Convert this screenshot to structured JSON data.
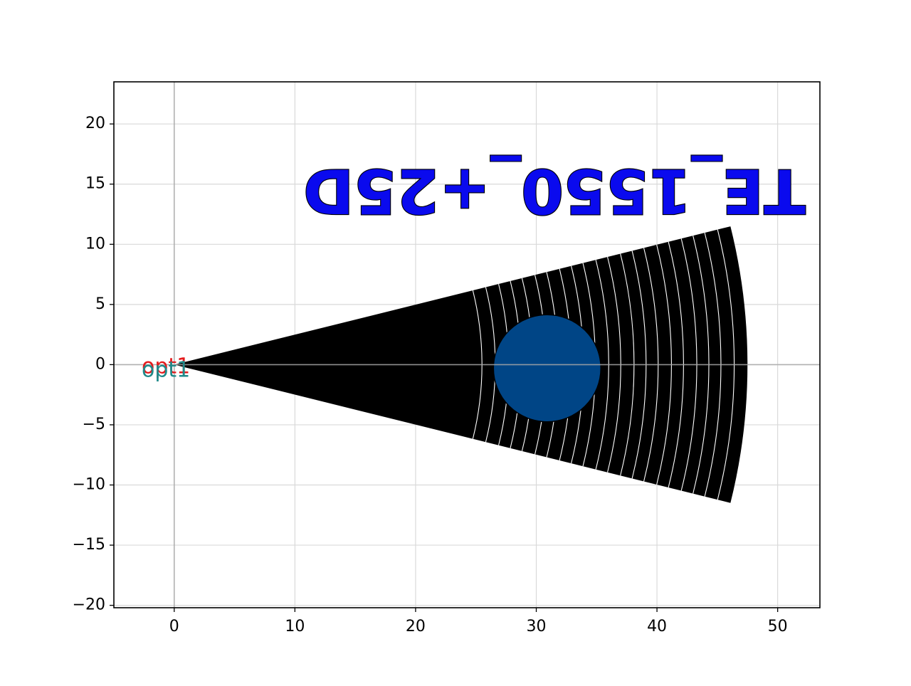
{
  "chart_data": {
    "type": "scatter",
    "title": "",
    "xlabel": "",
    "ylabel": "",
    "xlim": [
      -5,
      53.5
    ],
    "ylim": [
      -20.2,
      23.5
    ],
    "xticks": [
      0,
      10,
      20,
      30,
      40,
      50
    ],
    "yticks": [
      -20,
      -15,
      -10,
      -5,
      0,
      5,
      10,
      15,
      20
    ],
    "xtick_labels": [
      "0",
      "10",
      "20",
      "30",
      "40",
      "50"
    ],
    "ytick_labels": [
      "−20",
      "−15",
      "−10",
      "−5",
      "0",
      "5",
      "10",
      "15",
      "20"
    ],
    "grid": true,
    "origin_lines": true,
    "wedge": {
      "apex": [
        0,
        0
      ],
      "half_angle_deg": 14,
      "radius": 47.5,
      "color": "#000000"
    },
    "rings": {
      "radii": [
        25.5,
        26.6,
        27.7,
        28.7,
        29.7,
        30.8,
        31.8,
        32.9,
        33.9,
        34.9,
        36.0,
        37.0,
        38.1,
        39.1,
        40.1,
        41.2,
        42.2,
        43.3,
        44.3,
        45.3,
        46.4
      ],
      "color": "#ffffff"
    },
    "circle": {
      "center": [
        30.9,
        -0.3
      ],
      "radius": 4.45,
      "fill": "#004586",
      "edge": "#000000"
    },
    "annotations": [
      {
        "text": "opt1",
        "x": -2.7,
        "y": -0.2,
        "color": "#e41a1c"
      },
      {
        "text": "opt1",
        "x": -2.7,
        "y": -0.5,
        "color": "#1f8a8a"
      }
    ],
    "mirrored_label": {
      "text": "TE_1550_+25D",
      "x": 31.5,
      "y": 14.8,
      "fill": "#0a0aee",
      "edge": "#000000"
    }
  }
}
